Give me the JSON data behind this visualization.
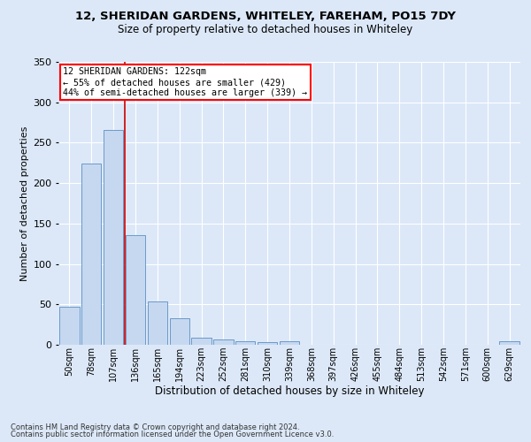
{
  "title1": "12, SHERIDAN GARDENS, WHITELEY, FAREHAM, PO15 7DY",
  "title2": "Size of property relative to detached houses in Whiteley",
  "xlabel": "Distribution of detached houses by size in Whiteley",
  "ylabel": "Number of detached properties",
  "footer1": "Contains HM Land Registry data © Crown copyright and database right 2024.",
  "footer2": "Contains public sector information licensed under the Open Government Licence v3.0.",
  "bar_color": "#c5d8f0",
  "bar_edge_color": "#5b8ec4",
  "categories": [
    "50sqm",
    "78sqm",
    "107sqm",
    "136sqm",
    "165sqm",
    "194sqm",
    "223sqm",
    "252sqm",
    "281sqm",
    "310sqm",
    "339sqm",
    "368sqm",
    "397sqm",
    "426sqm",
    "455sqm",
    "484sqm",
    "513sqm",
    "542sqm",
    "571sqm",
    "600sqm",
    "629sqm"
  ],
  "values": [
    47,
    224,
    266,
    136,
    54,
    33,
    9,
    7,
    4,
    3,
    4,
    0,
    0,
    0,
    0,
    0,
    0,
    0,
    0,
    0,
    4
  ],
  "property_line_x": 2.5,
  "property_sqm": 122,
  "pct_smaller": 55,
  "count_smaller": 429,
  "pct_larger_semi": 44,
  "count_larger_semi": 339,
  "ylim": [
    0,
    350
  ],
  "yticks": [
    0,
    50,
    100,
    150,
    200,
    250,
    300,
    350
  ],
  "bg_color": "#dce8f8",
  "grid_color": "#ffffff",
  "line_color": "#cc0000",
  "title1_fontsize": 9.5,
  "title2_fontsize": 8.5,
  "ylabel_fontsize": 8,
  "xlabel_fontsize": 8.5,
  "tick_fontsize": 7,
  "footer_fontsize": 6
}
